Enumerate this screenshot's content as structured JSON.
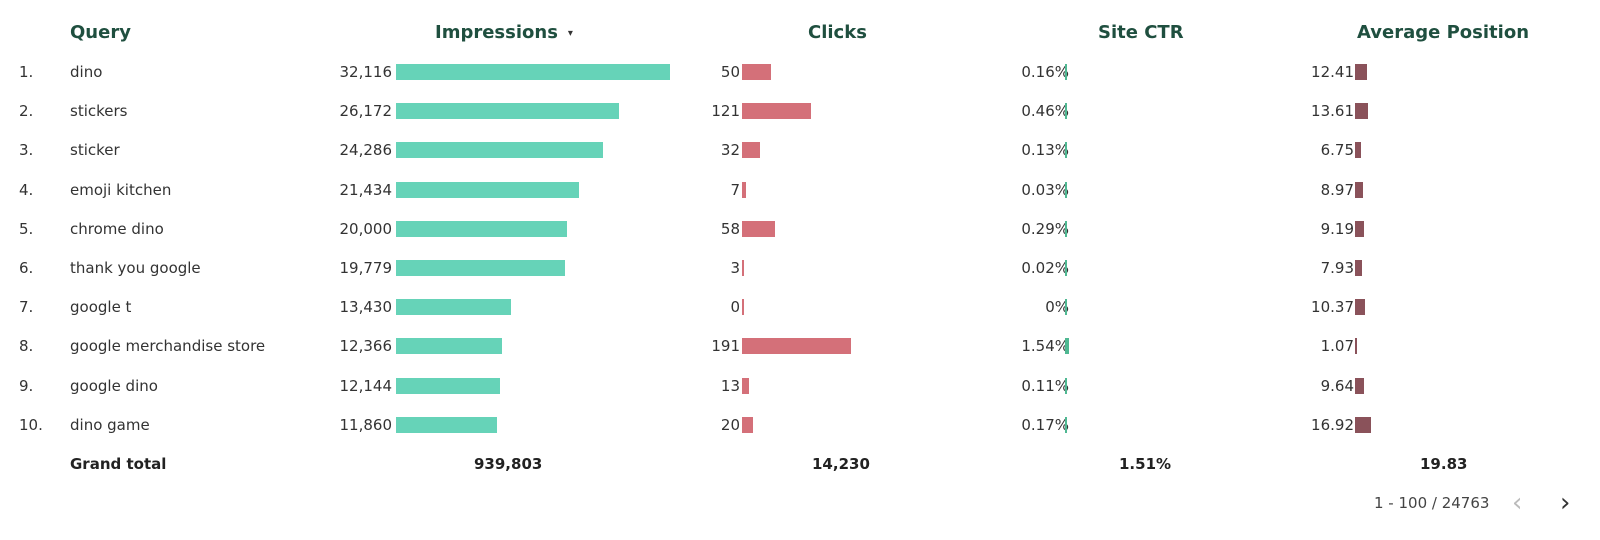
{
  "headers": {
    "query": "Query",
    "impressions": "Impressions",
    "sort_indicator": "▾",
    "clicks": "Clicks",
    "site_ctr": "Site CTR",
    "average_position": "Average Position"
  },
  "rows": [
    {
      "rank": "1.",
      "query": "dino",
      "impressions": "32,116",
      "impressions_value": 32116,
      "clicks": "50",
      "clicks_value": 50,
      "ctr": "0.16%",
      "ctr_value": 0.16,
      "position": "12.41",
      "position_value": 12.41
    },
    {
      "rank": "2.",
      "query": "stickers",
      "impressions": "26,172",
      "impressions_value": 26172,
      "clicks": "121",
      "clicks_value": 121,
      "ctr": "0.46%",
      "ctr_value": 0.46,
      "position": "13.61",
      "position_value": 13.61
    },
    {
      "rank": "3.",
      "query": "sticker",
      "impressions": "24,286",
      "impressions_value": 24286,
      "clicks": "32",
      "clicks_value": 32,
      "ctr": "0.13%",
      "ctr_value": 0.13,
      "position": "6.75",
      "position_value": 6.75
    },
    {
      "rank": "4.",
      "query": "emoji kitchen",
      "impressions": "21,434",
      "impressions_value": 21434,
      "clicks": "7",
      "clicks_value": 7,
      "ctr": "0.03%",
      "ctr_value": 0.03,
      "position": "8.97",
      "position_value": 8.97
    },
    {
      "rank": "5.",
      "query": "chrome dino",
      "impressions": "20,000",
      "impressions_value": 20000,
      "clicks": "58",
      "clicks_value": 58,
      "ctr": "0.29%",
      "ctr_value": 0.29,
      "position": "9.19",
      "position_value": 9.19
    },
    {
      "rank": "6.",
      "query": "thank you google",
      "impressions": "19,779",
      "impressions_value": 19779,
      "clicks": "3",
      "clicks_value": 3,
      "ctr": "0.02%",
      "ctr_value": 0.02,
      "position": "7.93",
      "position_value": 7.93
    },
    {
      "rank": "7.",
      "query": "google t",
      "impressions": "13,430",
      "impressions_value": 13430,
      "clicks": "0",
      "clicks_value": 0,
      "ctr": "0%",
      "ctr_value": 0,
      "position": "10.37",
      "position_value": 10.37
    },
    {
      "rank": "8.",
      "query": "google merchandise store",
      "impressions": "12,366",
      "impressions_value": 12366,
      "clicks": "191",
      "clicks_value": 191,
      "ctr": "1.54%",
      "ctr_value": 1.54,
      "position": "1.07",
      "position_value": 1.07
    },
    {
      "rank": "9.",
      "query": "google dino",
      "impressions": "12,144",
      "impressions_value": 12144,
      "clicks": "13",
      "clicks_value": 13,
      "ctr": "0.11%",
      "ctr_value": 0.11,
      "position": "9.64",
      "position_value": 9.64
    },
    {
      "rank": "10.",
      "query": "dino game",
      "impressions": "11,860",
      "impressions_value": 11860,
      "clicks": "20",
      "clicks_value": 20,
      "ctr": "0.17%",
      "ctr_value": 0.17,
      "position": "16.92",
      "position_value": 16.92
    }
  ],
  "totals": {
    "label": "Grand total",
    "impressions": "939,803",
    "clicks": "14,230",
    "site_ctr": "1.51%",
    "average_position": "19.83"
  },
  "pagination": {
    "range": "1 - 100 / 24763",
    "prev_icon": "chevron-left-icon",
    "next_icon": "chevron-right-icon"
  },
  "colors": {
    "impressions_bar": "#66d3b8",
    "clicks_bar": "#d47079",
    "ctr_bar": "#4fb892",
    "position_bar": "#8a525a",
    "header_text": "#1f4f3f"
  }
}
